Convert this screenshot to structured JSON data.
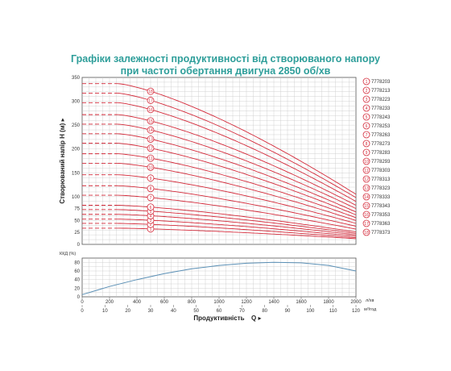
{
  "chart_data": [
    {
      "type": "line",
      "title_line1": "Графіки залежності продуктивності від створюваного напору",
      "title_line2": "при частоті обертання двигуна 2850 об/хв",
      "ylabel": "Створюваний напір H (м)",
      "ylim": [
        0,
        350
      ],
      "y_ticks": [
        0,
        25,
        50,
        75,
        100,
        150,
        200,
        250,
        300,
        350
      ],
      "y_tick_labels": [
        "0",
        "25",
        "50",
        "75",
        "100",
        "150",
        "200",
        "250",
        "300",
        "350"
      ],
      "grid": true,
      "curve_color": "#d42a3a",
      "grid_color": "#c8c8c8",
      "x_lmin_range": [
        0,
        2000
      ],
      "series": [
        {
          "marker": "1",
          "model": "7778203",
          "shutoff_head": 34,
          "end_head": 12
        },
        {
          "marker": "2",
          "model": "7778213",
          "shutoff_head": 44,
          "end_head": 14
        },
        {
          "marker": "3",
          "model": "7778223",
          "shutoff_head": 53,
          "end_head": 17
        },
        {
          "marker": "4",
          "model": "7778233",
          "shutoff_head": 63,
          "end_head": 20
        },
        {
          "marker": "5",
          "model": "7778243",
          "shutoff_head": 73,
          "end_head": 23
        },
        {
          "marker": "6",
          "model": "7778253",
          "shutoff_head": 82,
          "end_head": 26
        },
        {
          "marker": "7",
          "model": "7778263",
          "shutoff_head": 103,
          "end_head": 32
        },
        {
          "marker": "8",
          "model": "7778273",
          "shutoff_head": 123,
          "end_head": 38
        },
        {
          "marker": "9",
          "model": "7778283",
          "shutoff_head": 146,
          "end_head": 44
        },
        {
          "marker": "10",
          "model": "7778293",
          "shutoff_head": 170,
          "end_head": 50
        },
        {
          "marker": "11",
          "model": "7778303",
          "shutoff_head": 190,
          "end_head": 56
        },
        {
          "marker": "12",
          "model": "7778313",
          "shutoff_head": 212,
          "end_head": 62
        },
        {
          "marker": "13",
          "model": "7778323",
          "shutoff_head": 232,
          "end_head": 68
        },
        {
          "marker": "14",
          "model": "7778333",
          "shutoff_head": 252,
          "end_head": 75
        },
        {
          "marker": "15",
          "model": "7778343",
          "shutoff_head": 272,
          "end_head": 82
        },
        {
          "marker": "16",
          "model": "7778353",
          "shutoff_head": 297,
          "end_head": 90
        },
        {
          "marker": "17",
          "model": "7778363",
          "shutoff_head": 317,
          "end_head": 98
        },
        {
          "marker": "18",
          "model": "7778373",
          "shutoff_head": 337,
          "end_head": 105
        }
      ]
    },
    {
      "type": "line",
      "ylabel": "ККД (%)",
      "ylim": [
        0,
        90
      ],
      "y_ticks": [
        0,
        20,
        40,
        60,
        80
      ],
      "y_tick_labels": [
        "0",
        "20",
        "40",
        "60",
        "80"
      ],
      "xlabel": "Продуктивність",
      "xlabel_symbol": "Q",
      "x_unit_1": "л/хв",
      "x_unit_2": "м³/год",
      "x_ticks_lmin": [
        0,
        200,
        400,
        600,
        800,
        1000,
        1200,
        1400,
        1600,
        1800,
        2000
      ],
      "x_tick_labels_lmin": [
        "0",
        "200",
        "400",
        "600",
        "800",
        "1000",
        "1200",
        "1400",
        "1600",
        "1800",
        "2000"
      ],
      "x_ticks_m3h": [
        0,
        10,
        20,
        30,
        40,
        50,
        60,
        70,
        80,
        90,
        100,
        110,
        120
      ],
      "x_tick_labels_m3h": [
        "0",
        "10",
        "20",
        "30",
        "40",
        "50",
        "60",
        "70",
        "80",
        "90",
        "100",
        "110",
        "120"
      ],
      "efficiency_color": "#5a8fb5",
      "efficiency_curve": {
        "x": [
          0,
          200,
          400,
          600,
          800,
          1000,
          1200,
          1400,
          1600,
          1800,
          2000
        ],
        "y": [
          5,
          24,
          40,
          54,
          65,
          73,
          78,
          80,
          79,
          73,
          60
        ]
      }
    }
  ]
}
